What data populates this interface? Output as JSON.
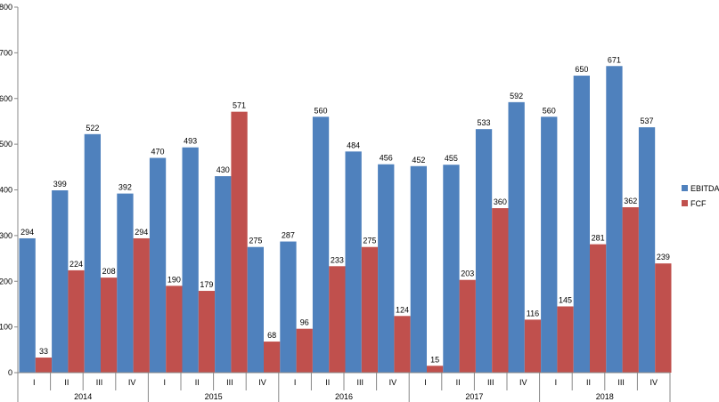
{
  "chart_data": {
    "type": "bar",
    "ylim": [
      0,
      800
    ],
    "yticks": [
      "0",
      "100",
      "200",
      "300",
      "400",
      "500",
      "600",
      "700",
      "800"
    ],
    "quarters": [
      "I",
      "II",
      "III",
      "IV"
    ],
    "years": [
      "2014",
      "2015",
      "2016",
      "2017",
      "2018"
    ],
    "categories": [
      "2014 I",
      "2014 II",
      "2014 III",
      "2014 IV",
      "2015 I",
      "2015 II",
      "2015 III",
      "2015 IV",
      "2016 I",
      "2016 II",
      "2016 III",
      "2016 IV",
      "2017 I",
      "2017 II",
      "2017 III",
      "2017 IV",
      "2018 I",
      "2018 II",
      "2018 III",
      "2018 IV"
    ],
    "series": [
      {
        "name": "EBITDA",
        "color": "#4F81BD",
        "values": [
          294,
          399,
          522,
          392,
          470,
          493,
          430,
          275,
          287,
          560,
          484,
          456,
          452,
          455,
          533,
          592,
          560,
          650,
          671,
          537
        ]
      },
      {
        "name": "FCF",
        "color": "#C0504D",
        "values": [
          33,
          224,
          208,
          294,
          190,
          179,
          571,
          68,
          96,
          233,
          275,
          124,
          15,
          203,
          360,
          116,
          145,
          281,
          362,
          239
        ]
      }
    ],
    "legend_position": "right",
    "grid": false
  }
}
